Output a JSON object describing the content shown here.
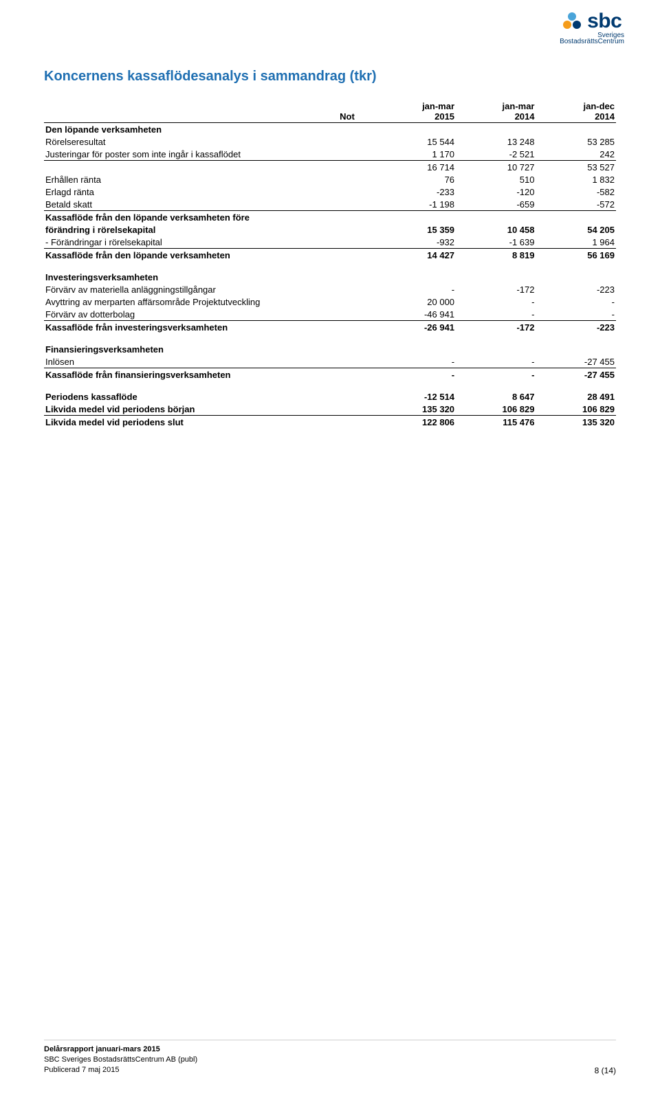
{
  "logo": {
    "brand": "sbc",
    "line1": "Sveriges",
    "line2": "BostadsrättsCentrum",
    "ball_top": "#4aa4d9",
    "ball_l": "#f59c1a",
    "ball_r": "#003a70",
    "brand_color": "#003a70"
  },
  "title": "Koncernens kassaflödesanalys i sammandrag (tkr)",
  "title_color": "#1f6fb2",
  "columns": {
    "not": "Not",
    "col1_l1": "jan-mar",
    "col1_l2": "2015",
    "col2_l1": "jan-mar",
    "col2_l2": "2014",
    "col3_l1": "jan-dec",
    "col3_l2": "2014"
  },
  "rows": [
    {
      "label": "Den löpande verksamheten",
      "bold": true
    },
    {
      "label": "Rörelseresultat",
      "c1": "15 544",
      "c2": "13 248",
      "c3": "53 285"
    },
    {
      "label": "Justeringar för poster som inte ingår i kassaflödet",
      "c1": "1 170",
      "c2": "-2 521",
      "c3": "242",
      "underline": true
    },
    {
      "label": "",
      "c1": "16 714",
      "c2": "10 727",
      "c3": "53 527"
    },
    {
      "label": "Erhållen ränta",
      "c1": "76",
      "c2": "510",
      "c3": "1 832"
    },
    {
      "label": "Erlagd ränta",
      "c1": "-233",
      "c2": "-120",
      "c3": "-582"
    },
    {
      "label": "Betald skatt",
      "c1": "-1 198",
      "c2": "-659",
      "c3": "-572",
      "underline": true
    },
    {
      "label": "Kassaflöde från den löpande verksamheten före",
      "bold": true
    },
    {
      "label": "förändring i rörelsekapital",
      "bold": true,
      "c1": "15 359",
      "c2": "10 458",
      "c3": "54 205"
    },
    {
      "label": "- Förändringar i rörelsekapital",
      "c1": "-932",
      "c2": "-1 639",
      "c3": "1 964",
      "underline": true
    },
    {
      "label": "Kassaflöde från den löpande verksamheten",
      "bold": true,
      "c1": "14 427",
      "c2": "8 819",
      "c3": "56 169"
    },
    {
      "spacer": true
    },
    {
      "label": "Investeringsverksamheten",
      "bold": true
    },
    {
      "label": "Förvärv av materiella anläggningstillgångar",
      "c1": "-",
      "c2": "-172",
      "c3": "-223"
    },
    {
      "label": "Avyttring av merparten affärsområde Projektutveckling",
      "c1": "20 000",
      "c2": "-",
      "c3": "-"
    },
    {
      "label": "Förvärv av dotterbolag",
      "c1": "-46 941",
      "c2": "-",
      "c3": "-",
      "underline": true
    },
    {
      "label": "Kassaflöde från investeringsverksamheten",
      "bold": true,
      "c1": "-26 941",
      "c2": "-172",
      "c3": "-223"
    },
    {
      "spacer": true
    },
    {
      "label": "Finansieringsverksamheten",
      "bold": true
    },
    {
      "label": "Inlösen",
      "c1": "-",
      "c2": "-",
      "c3": "-27 455",
      "underline": true
    },
    {
      "label": "Kassaflöde från finansieringsverksamheten",
      "bold": true,
      "c1": "-",
      "c2": "-",
      "c3": "-27 455"
    },
    {
      "spacer": true
    },
    {
      "label": "Periodens kassaflöde",
      "bold": true,
      "c1": "-12 514",
      "c2": "8 647",
      "c3": "28 491"
    },
    {
      "label": "Likvida medel vid periodens början",
      "bold": true,
      "c1": "135 320",
      "c2": "106 829",
      "c3": "106 829",
      "underline": true
    },
    {
      "label": "Likvida medel vid periodens slut",
      "bold": true,
      "c1": "122 806",
      "c2": "115 476",
      "c3": "135 320"
    }
  ],
  "footer": {
    "title": "Delårsrapport januari-mars 2015",
    "line1": "SBC Sveriges BostadsrättsCentrum AB (publ)",
    "line2": "Publicerad 7 maj 2015",
    "pagenum": "8 (14)"
  }
}
